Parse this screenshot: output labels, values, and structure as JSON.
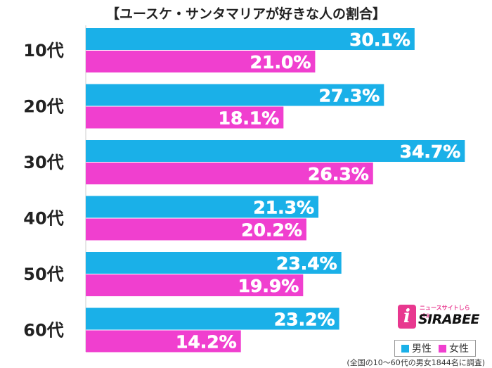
{
  "title": "【ユースケ・サンタマリアが好きな人の割合】",
  "colors": {
    "male": "#1ab0e8",
    "female": "#f03fcf",
    "grid": "#cccccc"
  },
  "legend": {
    "male_label": "男性",
    "female_label": "女性"
  },
  "footnote": "(全国の10～60代の男女1844名に調査)",
  "logo": {
    "mark": "i",
    "name": "SIRABEE",
    "tagline": "ニュースサイトしらべぇ"
  },
  "chart_data": {
    "type": "bar",
    "orientation": "horizontal",
    "title": "【ユースケ・サンタマリアが好きな人の割合】",
    "categories": [
      "10代",
      "20代",
      "30代",
      "40代",
      "50代",
      "60代"
    ],
    "series": [
      {
        "name": "男性",
        "values": [
          30.1,
          27.3,
          34.7,
          21.3,
          23.4,
          23.2
        ]
      },
      {
        "name": "女性",
        "values": [
          21.0,
          18.1,
          26.3,
          20.2,
          19.9,
          14.2
        ]
      }
    ],
    "value_suffix": "%",
    "xlim": [
      0,
      35
    ],
    "grid": false,
    "legend_position": "bottom-right"
  }
}
